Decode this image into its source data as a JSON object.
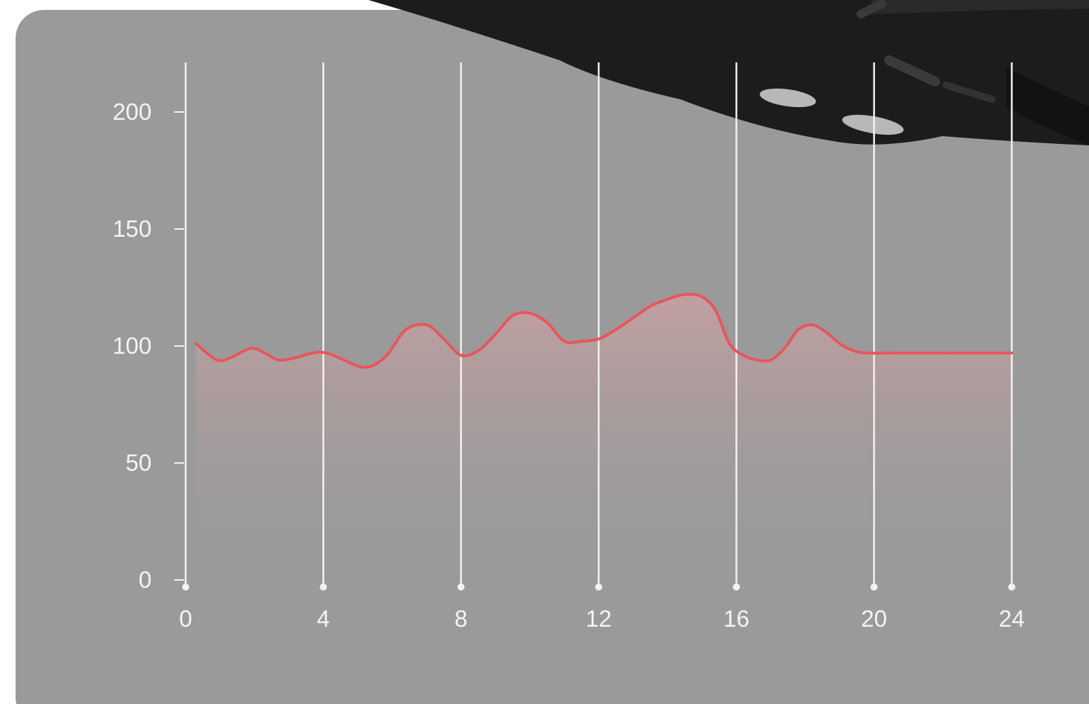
{
  "colors": {
    "panel_background": "#9a9a9a",
    "gridline": "#f2f2f2",
    "series_line": "#e9555c",
    "area_fill_top": "#c7a0a2",
    "tick_label": "#f4f4f4",
    "device_body": "#1c1c1c"
  },
  "device_icon": "smartwatch-band-photo",
  "chart_data": {
    "type": "area",
    "title": "",
    "xlabel": "",
    "ylabel": "",
    "xlim": [
      0,
      24
    ],
    "ylim": [
      0,
      200
    ],
    "x_ticks": [
      0,
      4,
      8,
      12,
      16,
      20,
      24
    ],
    "y_ticks": [
      0,
      50,
      100,
      150,
      200
    ],
    "x_tick_labels": [
      "0",
      "4",
      "8",
      "12",
      "16",
      "20",
      "24"
    ],
    "y_tick_labels": [
      "0",
      "50",
      "100",
      "150",
      "200"
    ],
    "grid": "vertical lines at x ticks",
    "legend": "none",
    "series": [
      {
        "x": [
          0.3,
          0.9,
          1.3,
          1.9,
          2.3,
          2.7,
          3.2,
          3.7,
          4.1,
          4.6,
          5.1,
          5.5,
          5.9,
          6.4,
          7.0,
          7.5,
          8.0,
          8.5,
          9.0,
          9.5,
          10.0,
          10.5,
          11.0,
          11.5,
          12.0,
          12.5,
          13.0,
          13.5,
          14.0,
          14.5,
          15.0,
          15.4,
          15.8,
          16.2,
          16.6,
          17.0,
          17.4,
          17.8,
          18.2,
          18.6,
          19.0,
          19.4,
          19.8,
          20.5,
          21.5,
          22.5,
          23.5,
          24.0
        ],
        "values": [
          101,
          94,
          95,
          99,
          97,
          94,
          95,
          97,
          97,
          94,
          91,
          92,
          97,
          107,
          109,
          103,
          96,
          98,
          105,
          113,
          114,
          110,
          102,
          102,
          103,
          107,
          112,
          117,
          120,
          122,
          121,
          115,
          101,
          96,
          94,
          94,
          99,
          107,
          109,
          106,
          101,
          98,
          97,
          97,
          97,
          97,
          97,
          97
        ]
      }
    ]
  }
}
